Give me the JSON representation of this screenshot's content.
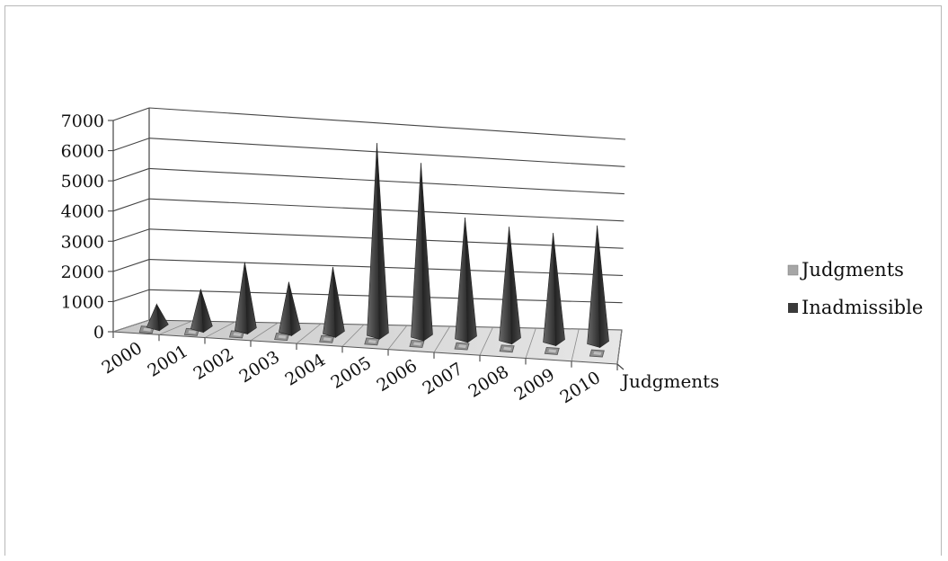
{
  "chart_data": {
    "type": "bar",
    "subtype": "3d-pyramid",
    "title": "",
    "xlabel": "",
    "ylabel": "",
    "categories": [
      "2000",
      "2001",
      "2002",
      "2003",
      "2004",
      "2005",
      "2006",
      "2007",
      "2008",
      "2009",
      "2010"
    ],
    "series": [
      {
        "name": "Judgments",
        "values": [
          0,
          0,
          0,
          0,
          0,
          0,
          0,
          0,
          0,
          0,
          0
        ],
        "color": "#a6a6a6"
      },
      {
        "name": "Inadmissible",
        "values": [
          700,
          1250,
          2200,
          1600,
          2150,
          6300,
          5700,
          3950,
          3700,
          3550,
          3850
        ],
        "color": "#3a3a3a"
      }
    ],
    "series_axis_labels": [
      "Judgments"
    ],
    "ylim": [
      0,
      7000
    ],
    "yticks": [
      0,
      1000,
      2000,
      3000,
      4000,
      5000,
      6000,
      7000
    ],
    "grid": true,
    "legend": "right"
  }
}
